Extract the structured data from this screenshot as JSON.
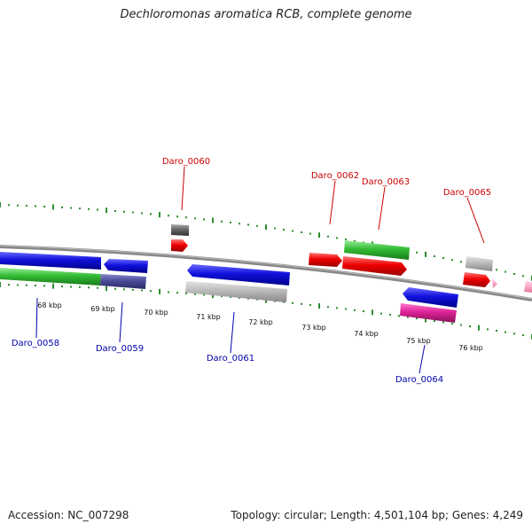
{
  "title": "Dechloromonas aromatica RCB, complete genome",
  "footer": {
    "accession": "Accession: NC_007298",
    "info": "Topology: circular; Length: 4,501,104 bp; Genes: 4,249"
  },
  "kbp_labels": [
    "68 kbp",
    "69 kbp",
    "70 kbp",
    "71 kbp",
    "72 kbp",
    "73 kbp",
    "74 kbp",
    "75 kbp",
    "76 kbp"
  ],
  "gene_labels": {
    "top": [
      "Daro_0060",
      "Daro_0062",
      "Daro_0063",
      "Daro_0065"
    ],
    "bottom": [
      "Daro_0058",
      "Daro_0059",
      "Daro_0061",
      "Daro_0064"
    ]
  },
  "colors": {
    "top_label": "#cc0000",
    "bottom_label": "#0000aa",
    "backbone": "#888888",
    "ticks": "#2e8b2e",
    "blue": "#1111dd",
    "green": "#33bb33",
    "red": "#ee0000",
    "gray": "#bbbbbb",
    "dark_gray": "#666666",
    "slate": "#4b4b99",
    "pink": "#dd2299",
    "light_pink": "#ffaacc"
  }
}
